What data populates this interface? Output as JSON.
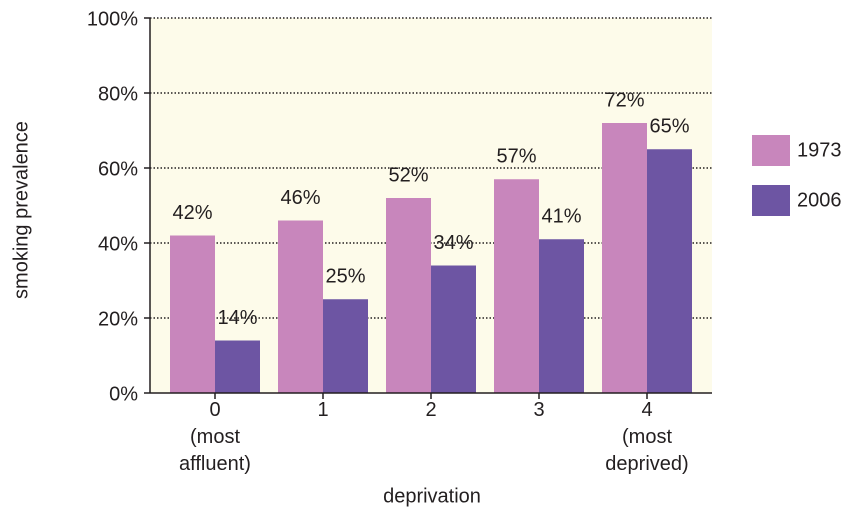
{
  "chart_data": {
    "type": "bar",
    "x_label": "deprivation",
    "y_label": "smoking prevalence",
    "categories": [
      "0\n(most\naffluent)",
      "1",
      "2",
      "3",
      "4\n(most\ndeprived)"
    ],
    "series": [
      {
        "name": "1973",
        "color": "#c886bc",
        "values": [
          42,
          46,
          52,
          57,
          72
        ],
        "value_labels": [
          "42%",
          "46%",
          "52%",
          "57%",
          "72%"
        ]
      },
      {
        "name": "2006",
        "color": "#6d55a3",
        "values": [
          14,
          25,
          34,
          41,
          65
        ],
        "value_labels": [
          "14%",
          "25%",
          "34%",
          "41%",
          "65%"
        ]
      }
    ],
    "ylim": [
      0,
      100
    ],
    "yticks": [
      {
        "value": 0,
        "label": "0%"
      },
      {
        "value": 20,
        "label": "20%"
      },
      {
        "value": 40,
        "label": "40%"
      },
      {
        "value": 60,
        "label": "60%"
      },
      {
        "value": 80,
        "label": "80%"
      },
      {
        "value": 100,
        "label": "100%"
      }
    ],
    "grid": true,
    "legend": "right",
    "background": "#fdfbea"
  }
}
